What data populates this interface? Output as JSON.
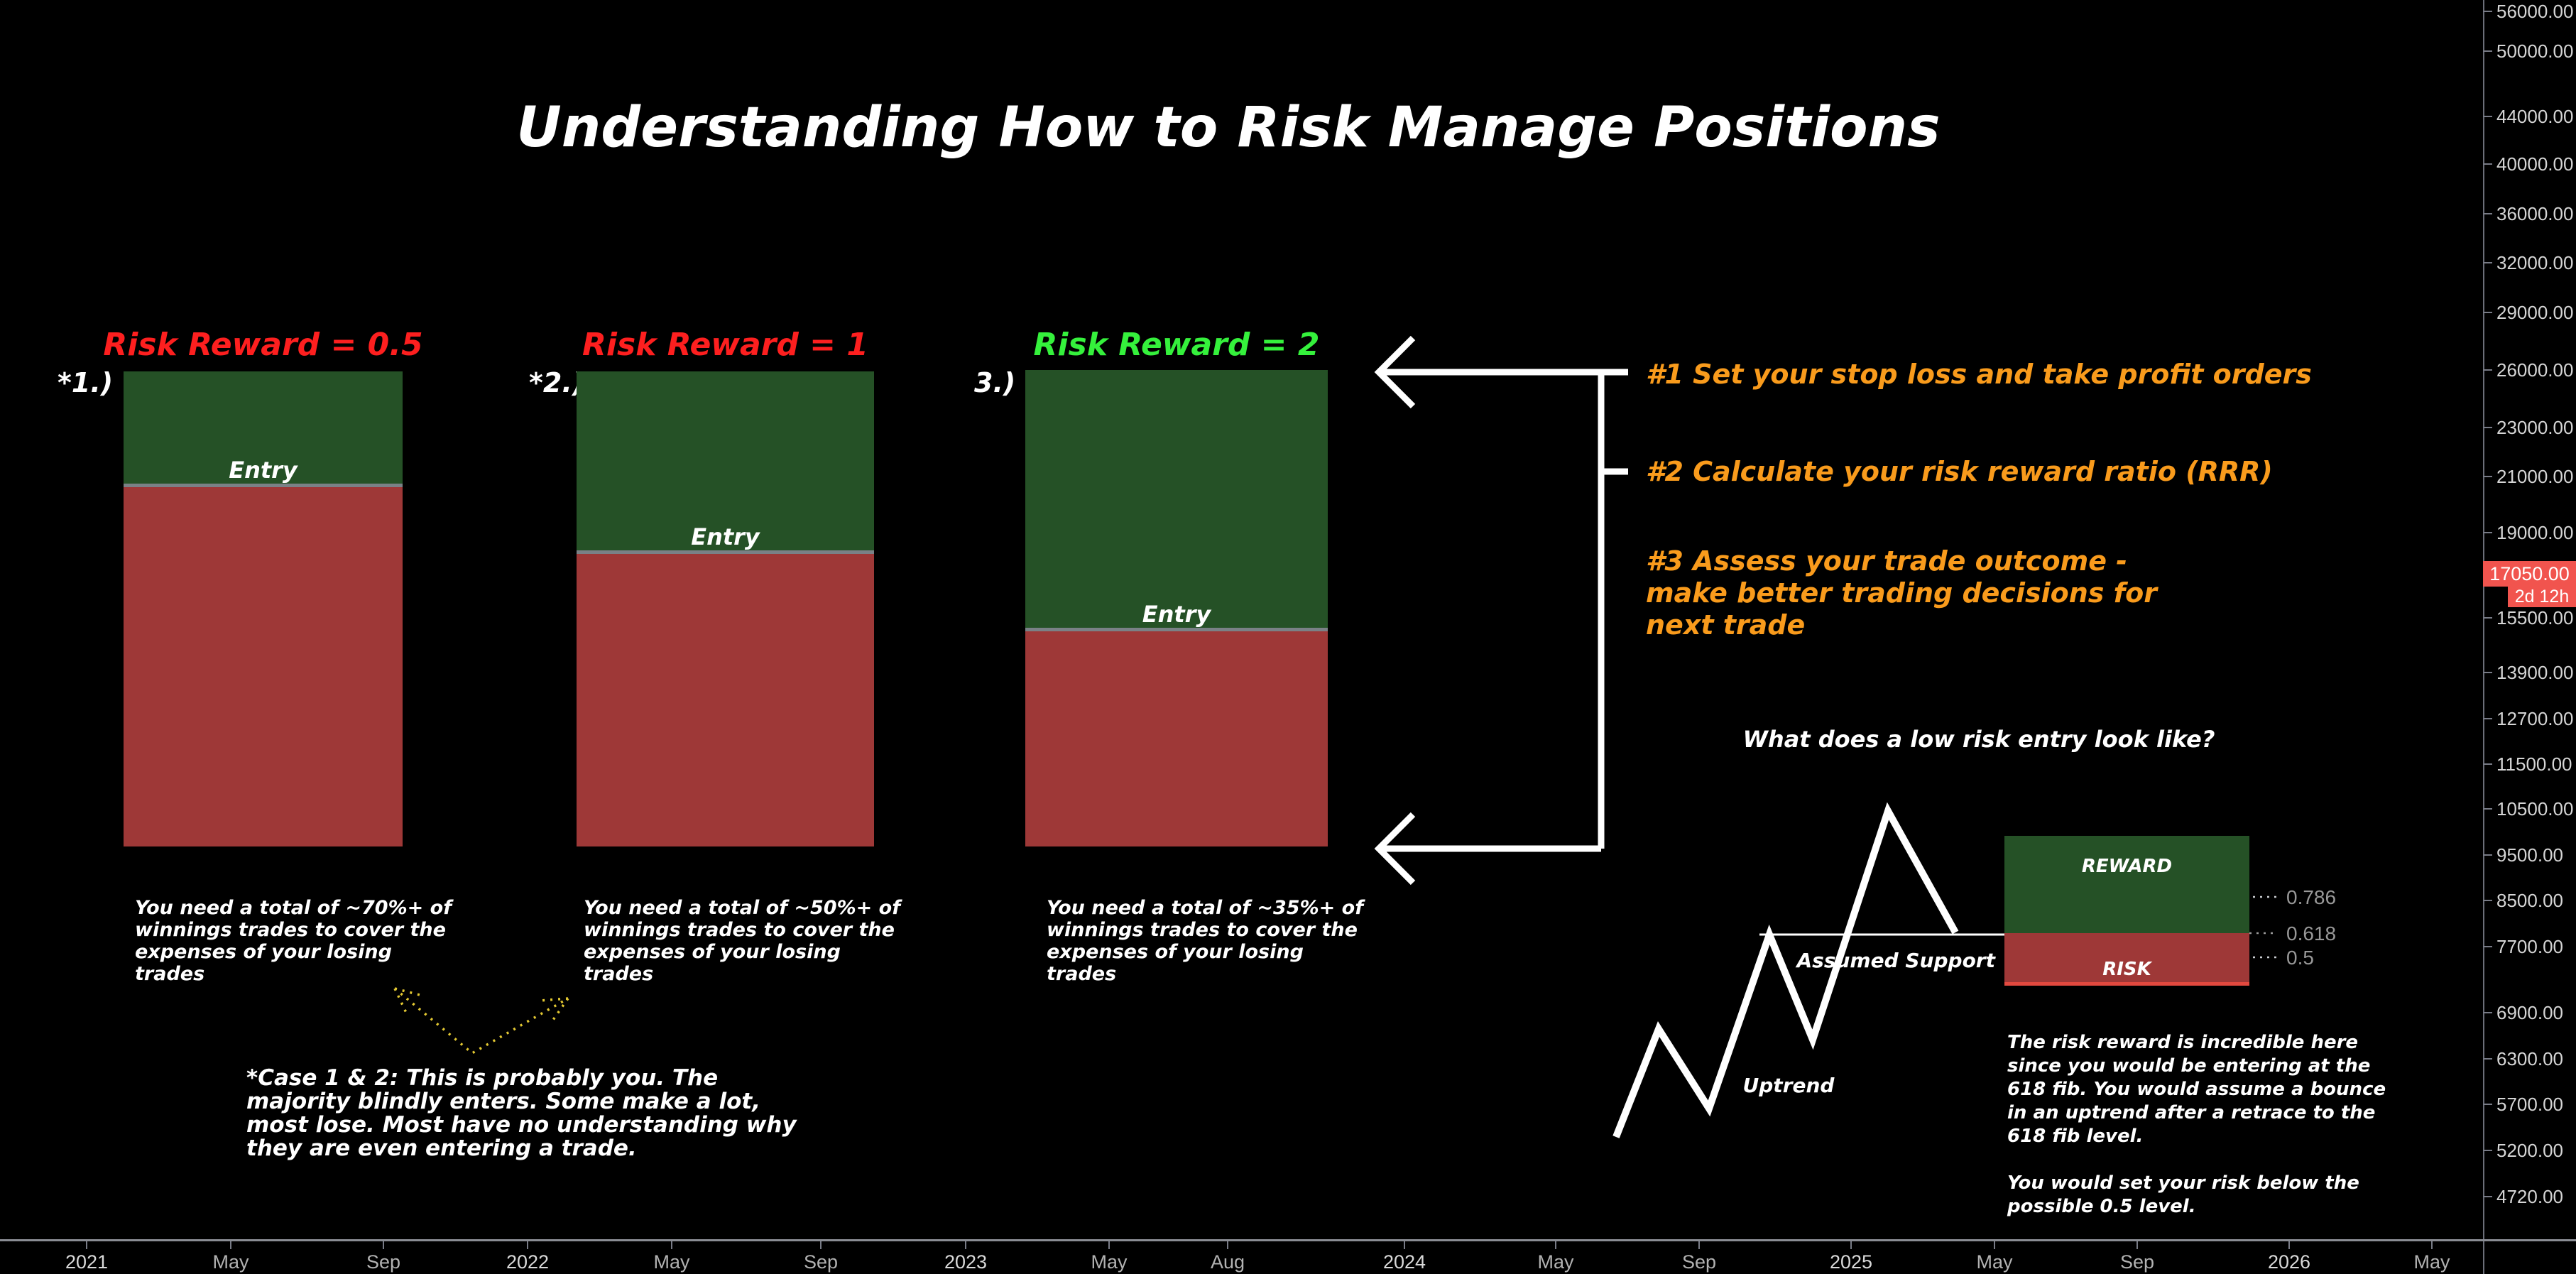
{
  "title": "Understanding How to Risk Manage Positions",
  "scenarios": [
    {
      "index_label": "*1.)",
      "title": "Risk Reward = 0.5",
      "title_color": "#fd1f1f",
      "entry_label": "Entry",
      "note": "You need a total of ~70%+ of\nwinnings trades to cover the\nexpenses of your losing\ntrades"
    },
    {
      "index_label": "*2.)",
      "title": "Risk Reward = 1",
      "title_color": "#fd1f1f",
      "entry_label": "Entry",
      "note": "You need a total of ~50%+ of\nwinnings trades to cover the\nexpenses of your losing\ntrades"
    },
    {
      "index_label": "3.)",
      "title": "Risk Reward = 2",
      "title_color": "#35f13c",
      "entry_label": "Entry",
      "note": "You need a total of ~35%+ of\nwinnings trades to cover the\nexpenses of your losing\ntrades"
    }
  ],
  "checklist": {
    "items": [
      "#1 Set your stop loss and take profit orders",
      "#2 Calculate your risk reward ratio (RRR)",
      "#3 Assess your trade outcome -\nmake better trading decisions for\nnext trade"
    ]
  },
  "case_note": "*Case 1 & 2: This is probably you. The\nmajority blindly enters. Some make a lot,\nmost lose. Most have no understanding why\nthey are even entering a trade.",
  "low_risk": {
    "question": "What does a low risk entry look like?",
    "support_label": "Assumed Support",
    "trend_label": "Uptrend",
    "reward_label": "REWARD",
    "risk_label": "RISK",
    "fib_levels": [
      "0.786",
      "0.618",
      "0.5"
    ],
    "explanation": "The risk reward is incredible here\nsince you would be entering at the\n618 fib. You would assume a bounce\nin an uptrend after a retrace to the\n618 fib level.\n\nYou would set your risk below the\npossible 0.5 level."
  },
  "price_axis": {
    "labels": [
      "56000.00",
      "50000.00",
      "44000.00",
      "40000.00",
      "36000.00",
      "32000.00",
      "29000.00",
      "26000.00",
      "23000.00",
      "21000.00",
      "19000.00",
      "15500.00",
      "13900.00",
      "12700.00",
      "11500.00",
      "10500.00",
      "9500.00",
      "8500.00",
      "7700.00",
      "6900.00",
      "6300.00",
      "5700.00",
      "5200.00",
      "4720.00"
    ],
    "last_price": "17050.00",
    "countdown": "2d 12h"
  },
  "time_axis": {
    "labels": [
      {
        "text": "2021",
        "major": true
      },
      {
        "text": "May",
        "major": false
      },
      {
        "text": "Sep",
        "major": false
      },
      {
        "text": "2022",
        "major": true
      },
      {
        "text": "May",
        "major": false
      },
      {
        "text": "Sep",
        "major": false
      },
      {
        "text": "2023",
        "major": true
      },
      {
        "text": "May",
        "major": false
      },
      {
        "text": "Aug",
        "major": false
      },
      {
        "text": "2024",
        "major": true
      },
      {
        "text": "May",
        "major": false
      },
      {
        "text": "Sep",
        "major": false
      },
      {
        "text": "2025",
        "major": true
      },
      {
        "text": "May",
        "major": false
      },
      {
        "text": "Sep",
        "major": false
      },
      {
        "text": "2026",
        "major": true
      },
      {
        "text": "May",
        "major": false
      }
    ]
  },
  "colors": {
    "box_green": "#255126",
    "box_red": "#9e3837",
    "badge_red": "#f1544e",
    "orange": "#f99b1c",
    "yellow": "#e3c832",
    "title_red": "#fd1f1f",
    "title_green": "#35f13c"
  }
}
